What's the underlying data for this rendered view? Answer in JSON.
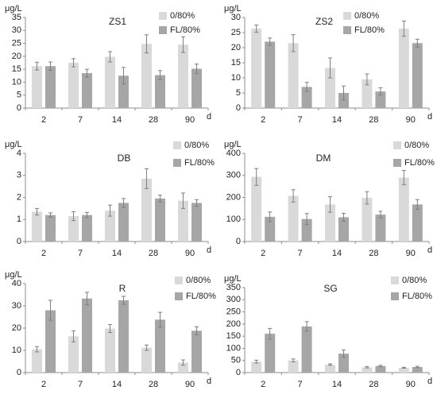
{
  "colors": {
    "series_light": "#d9d9d9",
    "series_dark": "#a6a6a6",
    "error_bar": "#7f7f7f",
    "axis": "#8c8c8c",
    "text": "#222222"
  },
  "chart_data": [
    {
      "type": "bar",
      "title": "ZS1",
      "ylabel": "μg/L",
      "xunit": "d",
      "categories": [
        "2",
        "7",
        "14",
        "28",
        "90"
      ],
      "ylim": [
        0,
        35
      ],
      "yticks": [
        0,
        5,
        10,
        15,
        20,
        25,
        30,
        35
      ],
      "legend_position": "top-right",
      "series": [
        {
          "name": "0/80%",
          "values": [
            16.2,
            17.5,
            19.8,
            24.8,
            24.5
          ],
          "errors": [
            1.5,
            1.6,
            2.0,
            3.5,
            3.0
          ]
        },
        {
          "name": "FL/80%",
          "values": [
            16.2,
            13.5,
            12.5,
            12.7,
            15.2
          ],
          "errors": [
            1.6,
            1.5,
            3.2,
            1.8,
            1.8
          ]
        }
      ]
    },
    {
      "type": "bar",
      "title": "ZS2",
      "ylabel": "μg/L",
      "xunit": "d",
      "categories": [
        "2",
        "7",
        "14",
        "28",
        "90"
      ],
      "ylim": [
        0,
        30
      ],
      "yticks": [
        0,
        5,
        10,
        15,
        20,
        25,
        30
      ],
      "legend_position": "top-right",
      "series": [
        {
          "name": "0/80%",
          "values": [
            26.3,
            21.5,
            13.3,
            9.5,
            26.3
          ],
          "errors": [
            1.2,
            2.8,
            3.3,
            1.8,
            2.5
          ]
        },
        {
          "name": "FL/80%",
          "values": [
            22.0,
            7.0,
            5.0,
            5.5,
            21.5
          ],
          "errors": [
            1.2,
            1.5,
            2.3,
            1.2,
            1.3
          ]
        }
      ]
    },
    {
      "type": "bar",
      "title": "DB",
      "ylabel": "μg/L",
      "xunit": "d",
      "categories": [
        "2",
        "7",
        "14",
        "28",
        "90"
      ],
      "ylim": [
        0,
        4
      ],
      "yticks": [
        0,
        1,
        2,
        3,
        4
      ],
      "legend_position": "top-right",
      "series": [
        {
          "name": "0/80%",
          "values": [
            1.35,
            1.15,
            1.4,
            2.85,
            1.85
          ],
          "errors": [
            0.15,
            0.2,
            0.25,
            0.45,
            0.35
          ]
        },
        {
          "name": "FL/80%",
          "values": [
            1.2,
            1.2,
            1.75,
            1.95,
            1.75
          ],
          "errors": [
            0.1,
            0.12,
            0.2,
            0.15,
            0.15
          ]
        }
      ]
    },
    {
      "type": "bar",
      "title": "DM",
      "ylabel": "μg/L",
      "xunit": "d",
      "categories": [
        "2",
        "7",
        "14",
        "28",
        "90"
      ],
      "ylim": [
        0,
        400
      ],
      "yticks": [
        0,
        100,
        200,
        300,
        400
      ],
      "legend_position": "top-right",
      "series": [
        {
          "name": "0/80%",
          "values": [
            293,
            207,
            168,
            198,
            290
          ],
          "errors": [
            38,
            28,
            35,
            28,
            32
          ]
        },
        {
          "name": "FL/80%",
          "values": [
            112,
            102,
            110,
            122,
            168
          ],
          "errors": [
            22,
            25,
            18,
            15,
            22
          ]
        }
      ]
    },
    {
      "type": "bar",
      "title": "R",
      "ylabel": "μg/L",
      "xunit": "d",
      "categories": [
        "2",
        "7",
        "14",
        "28",
        "90"
      ],
      "ylim": [
        0,
        40
      ],
      "yticks": [
        0,
        10,
        20,
        30,
        40
      ],
      "legend_position": "top-right",
      "series": [
        {
          "name": "0/80%",
          "values": [
            10.5,
            16.3,
            19.8,
            11.2,
            4.5
          ],
          "errors": [
            1.2,
            2.5,
            1.8,
            1.2,
            1.2
          ]
        },
        {
          "name": "FL/80%",
          "values": [
            28.0,
            33.3,
            32.5,
            23.8,
            18.8
          ],
          "errors": [
            4.5,
            2.8,
            1.8,
            3.3,
            1.8
          ]
        }
      ]
    },
    {
      "type": "bar",
      "title": "SG",
      "ylabel": "μg/L",
      "xunit": "d",
      "categories": [
        "2",
        "7",
        "14",
        "28",
        "90"
      ],
      "ylim": [
        0,
        350
      ],
      "yticks": [
        0,
        50,
        100,
        150,
        200,
        250,
        300,
        350
      ],
      "legend_position": "top-right",
      "series": [
        {
          "name": "0/80%",
          "values": [
            45,
            50,
            33,
            22,
            20
          ],
          "errors": [
            6,
            6,
            3,
            3,
            2
          ]
        },
        {
          "name": "FL/80%",
          "values": [
            160,
            190,
            78,
            27,
            23
          ],
          "errors": [
            22,
            20,
            15,
            3,
            3
          ]
        }
      ]
    }
  ]
}
